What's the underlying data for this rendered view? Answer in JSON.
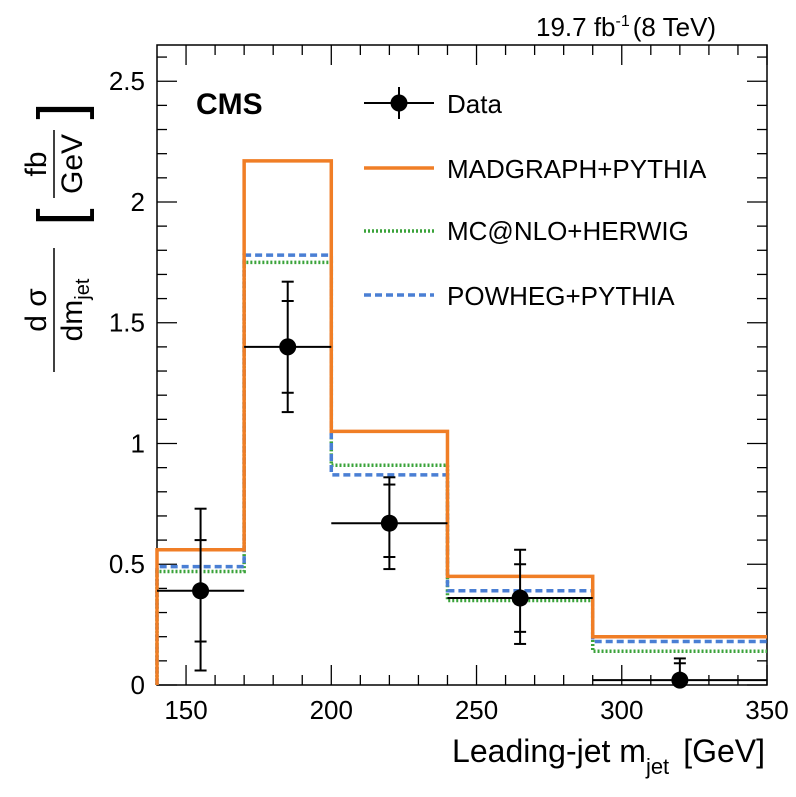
{
  "header": {
    "lumi": "19.7 fb",
    "lumi_exp": "-1",
    "energy": "(8 TeV)"
  },
  "chart_data": {
    "type": "histogram",
    "experiment": "CMS",
    "xlabel": "Leading-jet m",
    "xlabel_sub": "jet",
    "xlabel_unit": "[GeV]",
    "ylabel": {
      "num": "d σ",
      "den": "dm",
      "den_sub": "jet",
      "unit_num": "fb",
      "unit_den": "GeV"
    },
    "xlim": [
      140,
      350
    ],
    "ylim": [
      0,
      2.65
    ],
    "xticks": [
      150,
      200,
      250,
      300,
      350
    ],
    "yticks": [
      {
        "value": 0,
        "label": "0"
      },
      {
        "value": 0.5,
        "label": "0.5"
      },
      {
        "value": 1,
        "label": "1"
      },
      {
        "value": 1.5,
        "label": "1.5"
      },
      {
        "value": 2,
        "label": "2"
      },
      {
        "value": 2.5,
        "label": "2.5"
      }
    ],
    "bin_edges": [
      140,
      170,
      200,
      240,
      290,
      350
    ],
    "series": [
      {
        "name": "MADGRAPH+PYTHIA",
        "style": "solid",
        "color": "#f07e26",
        "values": [
          0.56,
          2.17,
          1.05,
          0.45,
          0.2
        ]
      },
      {
        "name": "MC@NLO+HERWIG",
        "style": "dotted",
        "color": "#3aa33a",
        "values": [
          0.47,
          1.75,
          0.91,
          0.35,
          0.14
        ]
      },
      {
        "name": "POWHEG+PYTHIA",
        "style": "dashed",
        "color": "#4a7fd4",
        "values": [
          0.49,
          1.78,
          0.87,
          0.39,
          0.18
        ]
      }
    ],
    "data": {
      "name": "Data",
      "points": [
        {
          "x": 155,
          "xerr": [
            140,
            170
          ],
          "y": 0.39,
          "stat": [
            0.18,
            0.6
          ],
          "tot": [
            0.06,
            0.73
          ]
        },
        {
          "x": 185,
          "xerr": [
            170,
            200
          ],
          "y": 1.4,
          "stat": [
            1.21,
            1.59
          ],
          "tot": [
            1.13,
            1.67
          ]
        },
        {
          "x": 220,
          "xerr": [
            200,
            240
          ],
          "y": 0.67,
          "stat": [
            0.53,
            0.83
          ],
          "tot": [
            0.48,
            0.86
          ]
        },
        {
          "x": 265,
          "xerr": [
            240,
            290
          ],
          "y": 0.36,
          "stat": [
            0.22,
            0.5
          ],
          "tot": [
            0.17,
            0.56
          ]
        },
        {
          "x": 320,
          "xerr": [
            290,
            350
          ],
          "y": 0.02,
          "stat": [
            0.0,
            0.09
          ],
          "tot": [
            0.0,
            0.11
          ]
        }
      ]
    }
  }
}
